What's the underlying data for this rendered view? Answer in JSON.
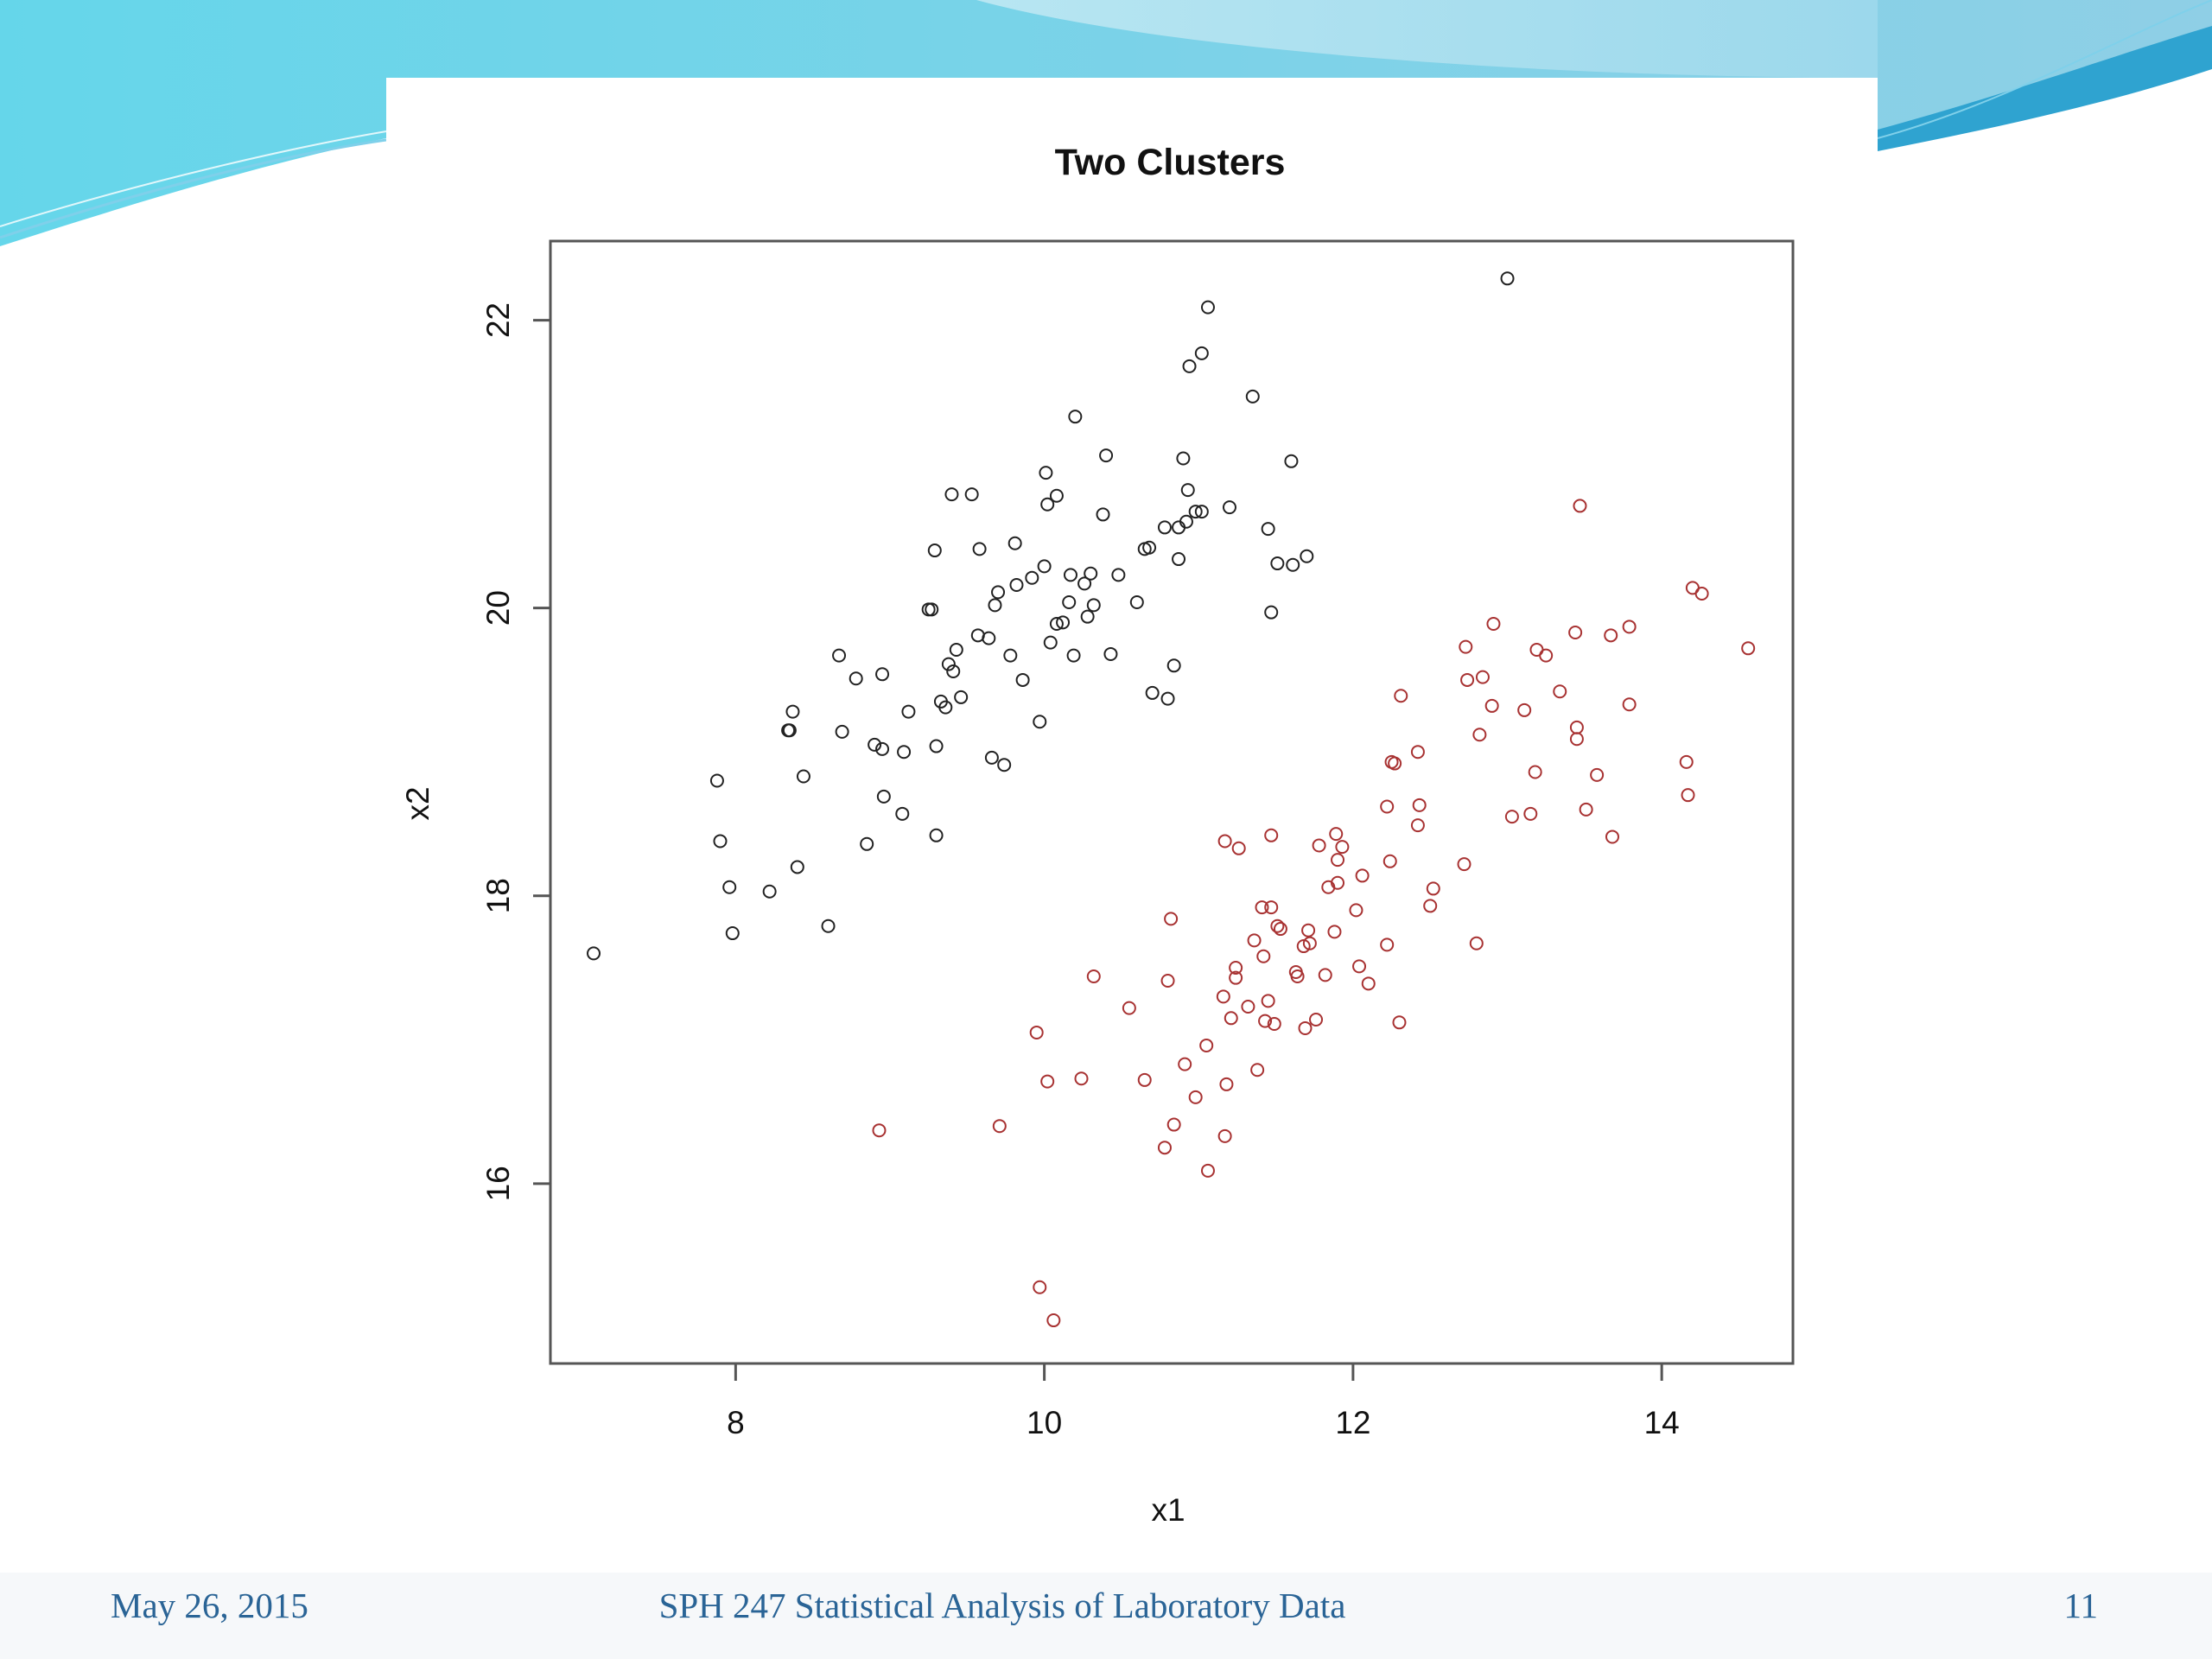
{
  "footer": {
    "date": "May 26, 2015",
    "course": "SPH 247 Statistical Analysis of Laboratory Data",
    "page_number": "11"
  },
  "theme": {
    "wave_light": "#bfeaf2",
    "wave_mid": "#7fd3e6",
    "wave_dark": "#35a9d3",
    "footer_text": "#2a6496"
  },
  "chart_data": {
    "type": "scatter",
    "title": "Two Clusters",
    "xlabel": "x1",
    "ylabel": "x2",
    "xlim": [
      6.8,
      14.85
    ],
    "ylim": [
      14.75,
      22.55
    ],
    "xticks": [
      8,
      10,
      12,
      14
    ],
    "yticks": [
      16,
      18,
      20,
      22
    ],
    "grid": false,
    "series": [
      {
        "color": "#222222",
        "points": [
          [
            7.08,
            17.6
          ],
          [
            7.88,
            18.8
          ],
          [
            7.9,
            18.38
          ],
          [
            7.96,
            18.06
          ],
          [
            7.98,
            17.74
          ],
          [
            8.22,
            18.03
          ],
          [
            8.34,
            19.15
          ],
          [
            8.35,
            19.15
          ],
          [
            8.37,
            19.28
          ],
          [
            8.4,
            18.2
          ],
          [
            8.44,
            18.83
          ],
          [
            8.6,
            17.79
          ],
          [
            8.67,
            19.67
          ],
          [
            8.69,
            19.14
          ],
          [
            8.78,
            19.51
          ],
          [
            8.85,
            18.36
          ],
          [
            8.9,
            19.05
          ],
          [
            8.95,
            19.02
          ],
          [
            8.95,
            19.54
          ],
          [
            8.96,
            18.69
          ],
          [
            9.08,
            18.57
          ],
          [
            9.09,
            19.0
          ],
          [
            9.12,
            19.28
          ],
          [
            9.25,
            19.99
          ],
          [
            9.27,
            19.99
          ],
          [
            9.29,
            20.4
          ],
          [
            9.3,
            19.04
          ],
          [
            9.3,
            18.42
          ],
          [
            9.33,
            19.35
          ],
          [
            9.36,
            19.31
          ],
          [
            9.38,
            19.61
          ],
          [
            9.41,
            19.56
          ],
          [
            9.43,
            19.71
          ],
          [
            9.46,
            19.38
          ],
          [
            9.4,
            20.79
          ],
          [
            9.53,
            20.79
          ],
          [
            9.57,
            19.81
          ],
          [
            9.58,
            20.41
          ],
          [
            9.64,
            19.79
          ],
          [
            9.66,
            18.96
          ],
          [
            9.68,
            20.02
          ],
          [
            9.7,
            20.11
          ],
          [
            9.74,
            18.91
          ],
          [
            9.78,
            19.67
          ],
          [
            9.82,
            20.16
          ],
          [
            9.81,
            20.45
          ],
          [
            9.86,
            19.5
          ],
          [
            9.92,
            20.21
          ],
          [
            9.97,
            19.21
          ],
          [
            10.0,
            20.29
          ],
          [
            10.01,
            20.94
          ],
          [
            10.02,
            20.72
          ],
          [
            10.04,
            19.76
          ],
          [
            10.08,
            19.89
          ],
          [
            10.08,
            20.78
          ],
          [
            10.12,
            19.9
          ],
          [
            10.16,
            20.04
          ],
          [
            10.17,
            20.23
          ],
          [
            10.19,
            19.67
          ],
          [
            10.2,
            21.33
          ],
          [
            10.26,
            20.17
          ],
          [
            10.28,
            19.94
          ],
          [
            10.3,
            20.24
          ],
          [
            10.32,
            20.02
          ],
          [
            10.38,
            20.65
          ],
          [
            10.4,
            21.06
          ],
          [
            10.43,
            19.68
          ],
          [
            10.48,
            20.23
          ],
          [
            10.6,
            20.04
          ],
          [
            10.65,
            20.41
          ],
          [
            10.68,
            20.42
          ],
          [
            10.7,
            19.41
          ],
          [
            10.78,
            20.56
          ],
          [
            10.8,
            19.37
          ],
          [
            10.84,
            19.6
          ],
          [
            10.87,
            20.56
          ],
          [
            10.87,
            20.34
          ],
          [
            10.9,
            21.04
          ],
          [
            10.92,
            20.6
          ],
          [
            10.93,
            20.82
          ],
          [
            10.94,
            21.68
          ],
          [
            10.98,
            20.67
          ],
          [
            11.02,
            21.77
          ],
          [
            11.02,
            20.67
          ],
          [
            11.06,
            22.09
          ],
          [
            11.2,
            20.7
          ],
          [
            11.35,
            21.47
          ],
          [
            11.45,
            20.55
          ],
          [
            11.47,
            19.97
          ],
          [
            11.51,
            20.31
          ],
          [
            11.6,
            21.02
          ],
          [
            11.61,
            20.3
          ],
          [
            11.7,
            20.36
          ],
          [
            13.0,
            22.29
          ]
        ]
      },
      {
        "color": "#a83232",
        "points": [
          [
            8.93,
            16.37
          ],
          [
            9.71,
            16.4
          ],
          [
            9.95,
            17.05
          ],
          [
            9.97,
            15.28
          ],
          [
            10.02,
            16.71
          ],
          [
            10.06,
            15.05
          ],
          [
            10.24,
            16.73
          ],
          [
            10.32,
            17.44
          ],
          [
            10.55,
            17.22
          ],
          [
            10.65,
            16.72
          ],
          [
            10.78,
            16.25
          ],
          [
            10.8,
            17.41
          ],
          [
            10.82,
            17.84
          ],
          [
            10.84,
            16.41
          ],
          [
            10.91,
            16.83
          ],
          [
            10.98,
            16.6
          ],
          [
            11.05,
            16.96
          ],
          [
            11.06,
            16.09
          ],
          [
            11.16,
            17.3
          ],
          [
            11.17,
            16.33
          ],
          [
            11.17,
            18.38
          ],
          [
            11.18,
            16.69
          ],
          [
            11.21,
            17.15
          ],
          [
            11.24,
            17.5
          ],
          [
            11.24,
            17.43
          ],
          [
            11.26,
            18.33
          ],
          [
            11.32,
            17.23
          ],
          [
            11.36,
            17.69
          ],
          [
            11.38,
            16.79
          ],
          [
            11.41,
            17.92
          ],
          [
            11.42,
            17.58
          ],
          [
            11.43,
            17.13
          ],
          [
            11.45,
            17.27
          ],
          [
            11.47,
            17.92
          ],
          [
            11.47,
            18.42
          ],
          [
            11.49,
            17.11
          ],
          [
            11.51,
            17.79
          ],
          [
            11.53,
            17.77
          ],
          [
            11.63,
            17.47
          ],
          [
            11.64,
            17.44
          ],
          [
            11.68,
            17.65
          ],
          [
            11.69,
            17.08
          ],
          [
            11.71,
            17.76
          ],
          [
            11.72,
            17.67
          ],
          [
            11.76,
            17.14
          ],
          [
            11.78,
            18.35
          ],
          [
            11.82,
            17.45
          ],
          [
            11.84,
            18.06
          ],
          [
            11.88,
            17.75
          ],
          [
            11.89,
            18.43
          ],
          [
            11.9,
            18.09
          ],
          [
            11.9,
            18.25
          ],
          [
            11.93,
            18.34
          ],
          [
            12.02,
            17.9
          ],
          [
            12.04,
            17.51
          ],
          [
            12.06,
            18.14
          ],
          [
            12.1,
            17.39
          ],
          [
            12.22,
            18.62
          ],
          [
            12.22,
            17.66
          ],
          [
            12.24,
            18.24
          ],
          [
            12.25,
            18.93
          ],
          [
            12.27,
            18.92
          ],
          [
            12.3,
            17.12
          ],
          [
            12.31,
            19.39
          ],
          [
            12.42,
            18.49
          ],
          [
            12.42,
            19.0
          ],
          [
            12.43,
            18.63
          ],
          [
            12.5,
            17.93
          ],
          [
            12.52,
            18.05
          ],
          [
            12.72,
            18.22
          ],
          [
            12.73,
            19.73
          ],
          [
            12.74,
            19.5
          ],
          [
            12.8,
            17.67
          ],
          [
            12.82,
            19.12
          ],
          [
            12.84,
            19.52
          ],
          [
            12.9,
            19.32
          ],
          [
            12.91,
            19.89
          ],
          [
            13.03,
            18.55
          ],
          [
            13.11,
            19.29
          ],
          [
            13.15,
            18.57
          ],
          [
            13.18,
            18.86
          ],
          [
            13.19,
            19.71
          ],
          [
            13.25,
            19.67
          ],
          [
            13.34,
            19.42
          ],
          [
            13.44,
            19.83
          ],
          [
            13.45,
            19.09
          ],
          [
            13.45,
            19.17
          ],
          [
            13.47,
            20.71
          ],
          [
            13.51,
            18.6
          ],
          [
            13.58,
            18.84
          ],
          [
            13.67,
            19.81
          ],
          [
            13.68,
            18.41
          ],
          [
            13.79,
            19.87
          ],
          [
            13.79,
            19.33
          ],
          [
            14.16,
            18.93
          ],
          [
            14.17,
            18.7
          ],
          [
            14.2,
            20.14
          ],
          [
            14.26,
            20.1
          ],
          [
            14.56,
            19.72
          ]
        ]
      }
    ]
  }
}
